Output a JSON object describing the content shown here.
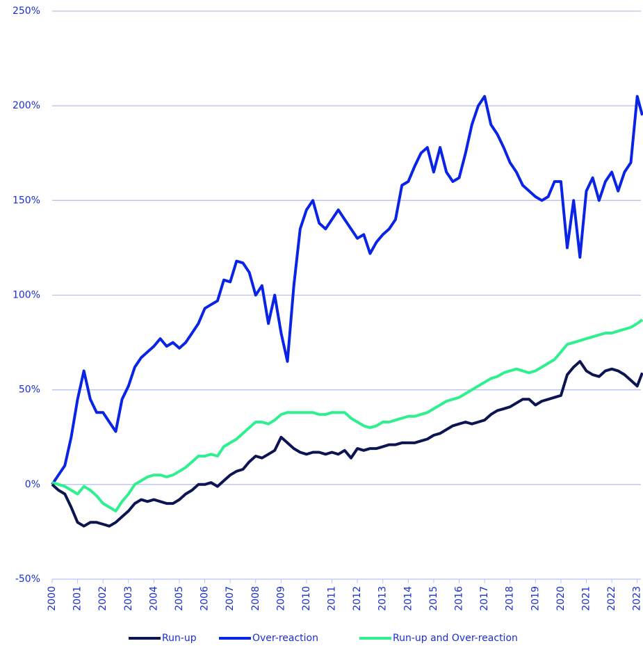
{
  "chart_data": {
    "type": "line",
    "x": [
      2000,
      2000.25,
      2000.5,
      2000.75,
      2001,
      2001.25,
      2001.5,
      2001.75,
      2002,
      2002.25,
      2002.5,
      2002.75,
      2003,
      2003.25,
      2003.5,
      2003.75,
      2004,
      2004.25,
      2004.5,
      2004.75,
      2005,
      2005.25,
      2005.5,
      2005.75,
      2006,
      2006.25,
      2006.5,
      2006.75,
      2007,
      2007.25,
      2007.5,
      2007.75,
      2008,
      2008.25,
      2008.5,
      2008.75,
      2009,
      2009.25,
      2009.5,
      2009.75,
      2010,
      2010.25,
      2010.5,
      2010.75,
      2011,
      2011.25,
      2011.5,
      2011.75,
      2012,
      2012.25,
      2012.5,
      2012.75,
      2013,
      2013.25,
      2013.5,
      2013.75,
      2014,
      2014.25,
      2014.5,
      2014.75,
      2015,
      2015.25,
      2015.5,
      2015.75,
      2016,
      2016.25,
      2016.5,
      2016.75,
      2017,
      2017.25,
      2017.5,
      2017.75,
      2018,
      2018.25,
      2018.5,
      2018.75,
      2019,
      2019.25,
      2019.5,
      2019.75,
      2020,
      2020.25,
      2020.5,
      2020.75,
      2021,
      2021.25,
      2021.5,
      2021.75,
      2022,
      2022.25,
      2022.5,
      2022.75,
      2023,
      2023.2
    ],
    "series": [
      {
        "name": "Run-up",
        "color": "#0d1452",
        "values": [
          0,
          -3,
          -5,
          -12,
          -20,
          -22,
          -20,
          -20,
          -21,
          -22,
          -20,
          -17,
          -14,
          -10,
          -8,
          -9,
          -8,
          -9,
          -10,
          -10,
          -8,
          -5,
          -3,
          0,
          0,
          1,
          -1,
          2,
          5,
          7,
          8,
          12,
          15,
          14,
          16,
          18,
          25,
          22,
          19,
          17,
          16,
          17,
          17,
          16,
          17,
          16,
          18,
          14,
          19,
          18,
          19,
          19,
          20,
          21,
          21,
          22,
          22,
          22,
          23,
          24,
          26,
          27,
          29,
          31,
          32,
          33,
          32,
          33,
          34,
          37,
          39,
          40,
          41,
          43,
          45,
          45,
          42,
          44,
          45,
          46,
          47,
          58,
          62,
          65,
          60,
          58,
          57,
          60,
          61,
          60,
          58,
          55,
          52,
          59
        ]
      },
      {
        "name": "Over-reaction",
        "color": "#0a24e6",
        "values": [
          0,
          5,
          10,
          25,
          45,
          60,
          45,
          38,
          38,
          33,
          28,
          45,
          52,
          62,
          67,
          70,
          73,
          77,
          73,
          75,
          72,
          75,
          80,
          85,
          93,
          95,
          97,
          108,
          107,
          118,
          117,
          112,
          100,
          105,
          85,
          100,
          80,
          65,
          105,
          135,
          145,
          150,
          138,
          135,
          140,
          145,
          140,
          135,
          130,
          132,
          122,
          128,
          132,
          135,
          140,
          158,
          160,
          168,
          175,
          178,
          165,
          178,
          165,
          160,
          162,
          175,
          190,
          200,
          205,
          190,
          185,
          178,
          170,
          165,
          158,
          155,
          152,
          150,
          152,
          160,
          160,
          125,
          150,
          120,
          155,
          162,
          150,
          160,
          165,
          155,
          165,
          170,
          205,
          195
        ]
      },
      {
        "name": "Run-up and Over-reaction",
        "color": "#2ef08e",
        "values": [
          1,
          0,
          -1,
          -3,
          -5,
          -1,
          -3,
          -6,
          -10,
          -12,
          -14,
          -9,
          -5,
          0,
          2,
          4,
          5,
          5,
          4,
          5,
          7,
          9,
          12,
          15,
          15,
          16,
          15,
          20,
          22,
          24,
          27,
          30,
          33,
          33,
          32,
          34,
          37,
          38,
          38,
          38,
          38,
          38,
          37,
          37,
          38,
          38,
          38,
          35,
          33,
          31,
          30,
          31,
          33,
          33,
          34,
          35,
          36,
          36,
          37,
          38,
          40,
          42,
          44,
          45,
          46,
          48,
          50,
          52,
          54,
          56,
          57,
          59,
          60,
          61,
          60,
          59,
          60,
          62,
          64,
          66,
          70,
          74,
          75,
          76,
          77,
          78,
          79,
          80,
          80,
          81,
          82,
          83,
          85,
          87
        ]
      }
    ],
    "xlim": [
      2000,
      2023.2
    ],
    "xticks": [
      2000,
      2001,
      2002,
      2003,
      2004,
      2005,
      2006,
      2007,
      2008,
      2009,
      2010,
      2011,
      2012,
      2013,
      2014,
      2015,
      2016,
      2017,
      2018,
      2019,
      2020,
      2021,
      2022,
      2023
    ],
    "ylim": [
      -50,
      250
    ],
    "yticks": [
      {
        "value": -50,
        "label": "-50%"
      },
      {
        "value": 0,
        "label": "0%"
      },
      {
        "value": 50,
        "label": "50%"
      },
      {
        "value": 100,
        "label": "100%"
      },
      {
        "value": 150,
        "label": "150%"
      },
      {
        "value": 200,
        "label": "200%"
      },
      {
        "value": 250,
        "label": "250%"
      }
    ],
    "grid": true,
    "legend": "bottom"
  }
}
